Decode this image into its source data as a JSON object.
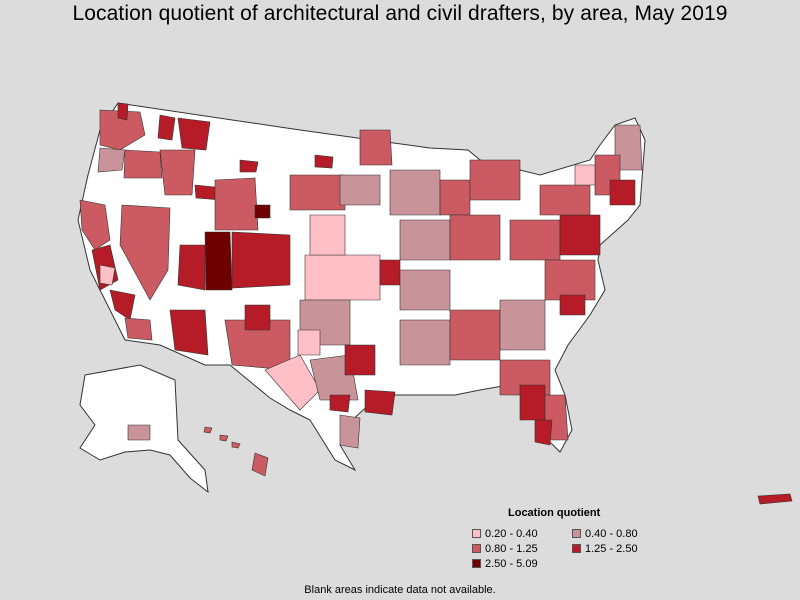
{
  "title": "Location quotient of architectural and civil drafters, by area, May 2019",
  "legend": {
    "title": "Location quotient",
    "items": [
      {
        "label": "0.20 - 0.40",
        "color": "#ffbfc6"
      },
      {
        "label": "0.40 - 0.80",
        "color": "#c9939a"
      },
      {
        "label": "0.80 - 1.25",
        "color": "#cc5a63"
      },
      {
        "label": "1.25 - 2.50",
        "color": "#b51c27"
      },
      {
        "label": "2.50 - 5.09",
        "color": "#6e0000"
      }
    ]
  },
  "footnote": "Blank areas indicate data not available.",
  "colors": {
    "background": "#dcdcdc",
    "no_data": "#ffffff",
    "border": "#333333"
  }
}
